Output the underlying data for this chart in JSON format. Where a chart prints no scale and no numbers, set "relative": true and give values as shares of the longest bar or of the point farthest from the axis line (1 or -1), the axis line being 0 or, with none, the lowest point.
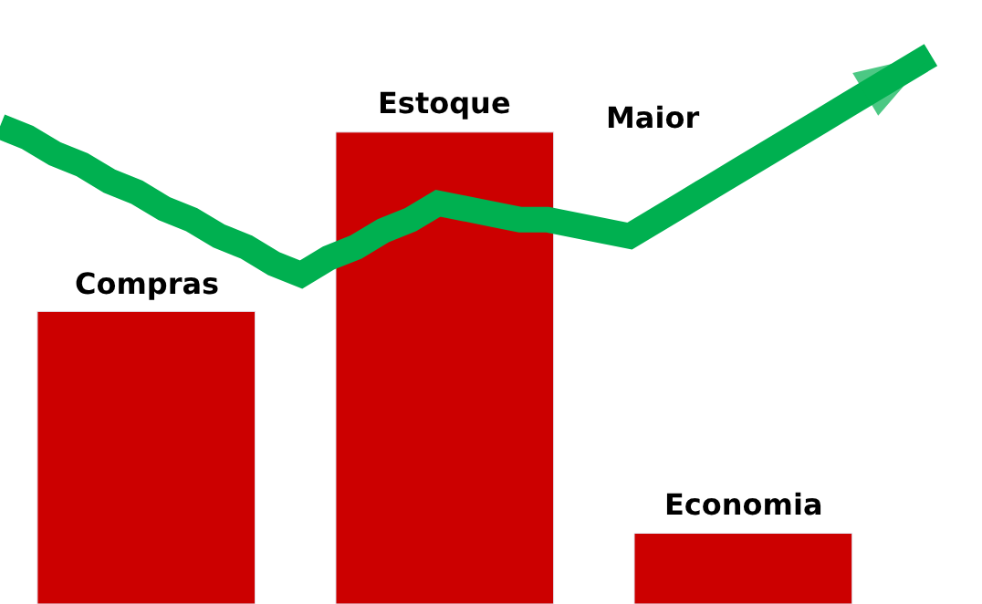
{
  "chart_data": [
    {
      "type": "bar",
      "relative": true,
      "categories": [
        null,
        null,
        null
      ],
      "values": [
        0.62,
        1,
        0.15
      ],
      "color": "#cc0000",
      "annotations": [
        "Compras",
        "Estoque",
        "Economia"
      ],
      "legend": false
    },
    {
      "type": "line",
      "relative": true,
      "categories": [
        null,
        null,
        null,
        null,
        null,
        null,
        null,
        null,
        null,
        null,
        null,
        null,
        null,
        null,
        null,
        null,
        null,
        null,
        null,
        null,
        null,
        null,
        null,
        null,
        null,
        null,
        null,
        null,
        null,
        null,
        null,
        null,
        null,
        null,
        null
      ],
      "series": [
        {
          "color": "#00b050",
          "values": [
            0.87,
            0.85,
            0.82,
            0.8,
            0.77,
            0.75,
            0.72,
            0.7,
            0.67,
            0.65,
            0.62,
            0.6,
            0.63,
            0.65,
            0.68,
            0.7,
            0.73,
            0.72,
            0.71,
            0.7,
            0.7,
            0.69,
            0.68,
            0.67,
            0.7,
            0.73,
            0.76,
            0.79,
            0.82,
            0.85,
            0.88,
            0.91,
            0.94,
            0.97,
            1.0
          ]
        }
      ],
      "annotations": [
        "Maior"
      ],
      "legend": false
    }
  ]
}
